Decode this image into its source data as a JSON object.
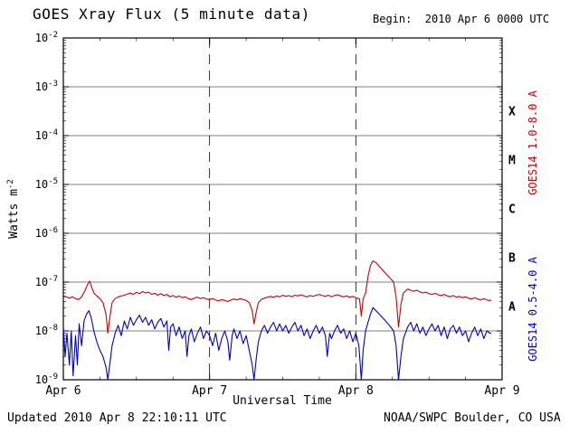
{
  "title": "GOES Xray Flux (5 minute data)",
  "begin_label": "Begin:  2010 Apr 6 0000 UTC",
  "footer": {
    "updated": "Updated 2010 Apr 8 22:10:11 UTC",
    "source": "NOAA/SWPC Boulder, CO USA"
  },
  "axes": {
    "xlabel": "Universal Time",
    "ylabel_base": "Watts m",
    "ylabel_exp": "-2",
    "y_tick_exponents": [
      -2,
      -3,
      -4,
      -5,
      -6,
      -7,
      -8,
      -9
    ],
    "flare_classes": [
      {
        "label": "X",
        "exp": -3.5
      },
      {
        "label": "M",
        "exp": -4.5
      },
      {
        "label": "C",
        "exp": -5.5
      },
      {
        "label": "B",
        "exp": -6.5
      },
      {
        "label": "A",
        "exp": -7.5
      }
    ]
  },
  "colors": {
    "long": "#cc0000",
    "short": "#0000cc",
    "grid": "#000000"
  },
  "chart_data": {
    "type": "line",
    "title": "GOES Xray Flux (5 minute data)",
    "xlabel": "Universal Time",
    "ylabel": "Watts m^-2",
    "x_unit": "hours since 2010 Apr 6 0000 UTC",
    "x_range": [
      0,
      72
    ],
    "y_log_range": [
      1e-09,
      0.01
    ],
    "grid": "solid horizontal per decade, dashed vertical per day",
    "legend_position": "right, rotated",
    "x_ticks": [
      {
        "hour": 0,
        "label": "Apr 6"
      },
      {
        "hour": 24,
        "label": "Apr 7"
      },
      {
        "hour": 48,
        "label": "Apr 8"
      },
      {
        "hour": 72,
        "label": "Apr 9"
      }
    ],
    "series": [
      {
        "id": "goes14-long",
        "name": "GOES14 1.0-8.0 A",
        "color": "#cc0000",
        "points": [
          [
            0,
            5.2e-08
          ],
          [
            0.5,
            5e-08
          ],
          [
            1,
            4.7e-08
          ],
          [
            1.5,
            5e-08
          ],
          [
            2,
            4.6e-08
          ],
          [
            2.5,
            4.4e-08
          ],
          [
            3,
            5e-08
          ],
          [
            3.5,
            6.5e-08
          ],
          [
            4,
            9e-08
          ],
          [
            4.3,
            1.05e-07
          ],
          [
            4.7,
            7.5e-08
          ],
          [
            5,
            6e-08
          ],
          [
            5.5,
            5.2e-08
          ],
          [
            6,
            4.6e-08
          ],
          [
            6.5,
            3.8e-08
          ],
          [
            7,
            2.2e-08
          ],
          [
            7.3,
            9e-09
          ],
          [
            7.7,
            2.2e-08
          ],
          [
            8,
            3.8e-08
          ],
          [
            8.5,
            4.6e-08
          ],
          [
            9,
            5e-08
          ],
          [
            10,
            5.4e-08
          ],
          [
            11,
            6e-08
          ],
          [
            11.5,
            5.6e-08
          ],
          [
            12,
            6.2e-08
          ],
          [
            12.5,
            5.8e-08
          ],
          [
            13,
            6.4e-08
          ],
          [
            13.5,
            6e-08
          ],
          [
            14,
            6.2e-08
          ],
          [
            14.5,
            5.6e-08
          ],
          [
            15,
            5.9e-08
          ],
          [
            15.5,
            5.4e-08
          ],
          [
            16,
            5.8e-08
          ],
          [
            16.5,
            5.3e-08
          ],
          [
            17,
            5.6e-08
          ],
          [
            17.5,
            5e-08
          ],
          [
            18,
            5.3e-08
          ],
          [
            18.5,
            4.9e-08
          ],
          [
            19,
            5.2e-08
          ],
          [
            19.5,
            4.8e-08
          ],
          [
            20,
            5e-08
          ],
          [
            20.5,
            4.6e-08
          ],
          [
            21,
            4.4e-08
          ],
          [
            21.5,
            4.7e-08
          ],
          [
            22,
            4.9e-08
          ],
          [
            22.5,
            4.6e-08
          ],
          [
            23,
            4.8e-08
          ],
          [
            23.5,
            4.5e-08
          ],
          [
            24,
            4.4e-08
          ],
          [
            24.5,
            4.6e-08
          ],
          [
            25,
            4.3e-08
          ],
          [
            25.5,
            4.1e-08
          ],
          [
            26,
            4.4e-08
          ],
          [
            26.5,
            4.2e-08
          ],
          [
            27,
            4e-08
          ],
          [
            27.5,
            4.3e-08
          ],
          [
            28,
            4.5e-08
          ],
          [
            28.5,
            4.3e-08
          ],
          [
            29,
            4.6e-08
          ],
          [
            29.5,
            4.4e-08
          ],
          [
            30,
            4.2e-08
          ],
          [
            30.5,
            3.8e-08
          ],
          [
            31,
            2.6e-08
          ],
          [
            31.3,
            1.4e-08
          ],
          [
            31.7,
            2.6e-08
          ],
          [
            32,
            3.8e-08
          ],
          [
            32.5,
            4.4e-08
          ],
          [
            33,
            4.7e-08
          ],
          [
            33.5,
            4.9e-08
          ],
          [
            34,
            5.1e-08
          ],
          [
            34.5,
            4.9e-08
          ],
          [
            35,
            5.2e-08
          ],
          [
            35.5,
            5e-08
          ],
          [
            36,
            5.4e-08
          ],
          [
            36.5,
            5.1e-08
          ],
          [
            37,
            5.3e-08
          ],
          [
            37.5,
            5e-08
          ],
          [
            38,
            5.4e-08
          ],
          [
            38.5,
            5.2e-08
          ],
          [
            39,
            5.5e-08
          ],
          [
            39.5,
            5.2e-08
          ],
          [
            40,
            5e-08
          ],
          [
            40.5,
            5.3e-08
          ],
          [
            41,
            5.1e-08
          ],
          [
            41.5,
            5.4e-08
          ],
          [
            42,
            5.6e-08
          ],
          [
            42.5,
            5.3e-08
          ],
          [
            43,
            5.1e-08
          ],
          [
            43.5,
            5.4e-08
          ],
          [
            44,
            5e-08
          ],
          [
            44.5,
            5.3e-08
          ],
          [
            45,
            5.5e-08
          ],
          [
            45.5,
            5.2e-08
          ],
          [
            46,
            5e-08
          ],
          [
            46.5,
            5.2e-08
          ],
          [
            47,
            4.9e-08
          ],
          [
            47.5,
            5.1e-08
          ],
          [
            48,
            4.8e-08
          ],
          [
            48.6,
            4.5e-08
          ],
          [
            48.9,
            2e-08
          ],
          [
            49.2,
            4.5e-08
          ],
          [
            49.6,
            6e-08
          ],
          [
            50,
            1.3e-07
          ],
          [
            50.4,
            2.2e-07
          ],
          [
            50.8,
            2.7e-07
          ],
          [
            51.3,
            2.5e-07
          ],
          [
            52,
            2e-07
          ],
          [
            52.7,
            1.6e-07
          ],
          [
            53.5,
            1.25e-07
          ],
          [
            54.2,
            1e-07
          ],
          [
            54.6,
            5e-08
          ],
          [
            55,
            1.2e-08
          ],
          [
            55.4,
            3.5e-08
          ],
          [
            55.8,
            6e-08
          ],
          [
            56.5,
            7.2e-08
          ],
          [
            57,
            6.8e-08
          ],
          [
            57.5,
            6.5e-08
          ],
          [
            58,
            6.8e-08
          ],
          [
            58.5,
            6.3e-08
          ],
          [
            59,
            6e-08
          ],
          [
            59.5,
            6.2e-08
          ],
          [
            60,
            5.8e-08
          ],
          [
            60.5,
            5.6e-08
          ],
          [
            61,
            5.9e-08
          ],
          [
            61.5,
            5.5e-08
          ],
          [
            62,
            5.3e-08
          ],
          [
            62.5,
            5.6e-08
          ],
          [
            63,
            5.2e-08
          ],
          [
            63.5,
            5e-08
          ],
          [
            64,
            5.3e-08
          ],
          [
            64.5,
            4.9e-08
          ],
          [
            65,
            5.1e-08
          ],
          [
            65.5,
            4.8e-08
          ],
          [
            66,
            5e-08
          ],
          [
            66.5,
            4.7e-08
          ],
          [
            67,
            4.5e-08
          ],
          [
            67.5,
            4.8e-08
          ],
          [
            68,
            4.5e-08
          ],
          [
            68.5,
            4.3e-08
          ],
          [
            69,
            4.6e-08
          ],
          [
            69.5,
            4.3e-08
          ],
          [
            70,
            4.2e-08
          ],
          [
            70.2,
            4.3e-08
          ]
        ]
      },
      {
        "id": "goes14-short",
        "name": "GOES14 0.5-4.0 A",
        "color": "#0000cc",
        "points": [
          [
            0,
            1.2e-08
          ],
          [
            0.3,
            3e-09
          ],
          [
            0.6,
            9e-09
          ],
          [
            1,
            2e-09
          ],
          [
            1.3,
            1e-08
          ],
          [
            1.6,
            1.2e-09
          ],
          [
            2,
            8e-09
          ],
          [
            2.3,
            2e-09
          ],
          [
            2.6,
            1.4e-08
          ],
          [
            3,
            5e-09
          ],
          [
            3.4,
            1.6e-08
          ],
          [
            3.8,
            2.2e-08
          ],
          [
            4.2,
            2.6e-08
          ],
          [
            4.6,
            1.8e-08
          ],
          [
            5,
            1e-08
          ],
          [
            5.5,
            6e-09
          ],
          [
            6,
            4e-09
          ],
          [
            6.5,
            3e-09
          ],
          [
            7,
            1.8e-09
          ],
          [
            7.3,
            1e-09
          ],
          [
            7.7,
            2.5e-09
          ],
          [
            8,
            5e-09
          ],
          [
            8.5,
            9e-09
          ],
          [
            9,
            1.3e-08
          ],
          [
            9.5,
            8e-09
          ],
          [
            10,
            1.6e-08
          ],
          [
            10.5,
            1.1e-08
          ],
          [
            11,
            1.9e-08
          ],
          [
            11.5,
            1.3e-08
          ],
          [
            12,
            1.7e-08
          ],
          [
            12.5,
            2.1e-08
          ],
          [
            13,
            1.5e-08
          ],
          [
            13.5,
            1.9e-08
          ],
          [
            14,
            1.3e-08
          ],
          [
            14.5,
            1.7e-08
          ],
          [
            15,
            1.1e-08
          ],
          [
            15.5,
            1.5e-08
          ],
          [
            16,
            1.8e-08
          ],
          [
            16.5,
            1.2e-08
          ],
          [
            17,
            1.6e-08
          ],
          [
            17.3,
            4e-09
          ],
          [
            17.6,
            1.2e-08
          ],
          [
            18,
            1.4e-08
          ],
          [
            18.5,
            8e-09
          ],
          [
            19,
            1.2e-08
          ],
          [
            19.5,
            7e-09
          ],
          [
            20,
            1e-08
          ],
          [
            20.3,
            3e-09
          ],
          [
            20.6,
            8e-09
          ],
          [
            21,
            1.1e-08
          ],
          [
            21.5,
            6e-09
          ],
          [
            22,
            9e-09
          ],
          [
            22.5,
            1.2e-08
          ],
          [
            23,
            7e-09
          ],
          [
            23.5,
            1e-08
          ],
          [
            24,
            8e-09
          ],
          [
            24.5,
            5e-09
          ],
          [
            25,
            9e-09
          ],
          [
            25.5,
            4e-09
          ],
          [
            26,
            7e-09
          ],
          [
            26.5,
            1e-08
          ],
          [
            27,
            6e-09
          ],
          [
            27.3,
            2.5e-09
          ],
          [
            27.7,
            8e-09
          ],
          [
            28,
            1.1e-08
          ],
          [
            28.5,
            7e-09
          ],
          [
            29,
            1e-08
          ],
          [
            29.5,
            5.5e-09
          ],
          [
            30,
            8e-09
          ],
          [
            30.5,
            4e-09
          ],
          [
            31,
            2e-09
          ],
          [
            31.3,
            1e-09
          ],
          [
            31.7,
            3e-09
          ],
          [
            32,
            6e-09
          ],
          [
            32.5,
            1e-08
          ],
          [
            33,
            1.3e-08
          ],
          [
            33.5,
            9e-09
          ],
          [
            34,
            1.2e-08
          ],
          [
            34.5,
            1.5e-08
          ],
          [
            35,
            1e-08
          ],
          [
            35.5,
            1.4e-08
          ],
          [
            36,
            1e-08
          ],
          [
            36.5,
            1.3e-08
          ],
          [
            37,
            9e-09
          ],
          [
            37.5,
            1.2e-08
          ],
          [
            38,
            1.5e-08
          ],
          [
            38.5,
            1e-08
          ],
          [
            39,
            1.3e-08
          ],
          [
            39.5,
            8e-09
          ],
          [
            40,
            1.1e-08
          ],
          [
            40.5,
            7e-09
          ],
          [
            41,
            1e-08
          ],
          [
            41.5,
            1.3e-08
          ],
          [
            42,
            9e-09
          ],
          [
            42.5,
            1.2e-08
          ],
          [
            43,
            8e-09
          ],
          [
            43.3,
            3e-09
          ],
          [
            43.7,
            9e-09
          ],
          [
            44,
            7e-09
          ],
          [
            44.5,
            1e-08
          ],
          [
            45,
            1.3e-08
          ],
          [
            45.5,
            9e-09
          ],
          [
            46,
            1.1e-08
          ],
          [
            46.5,
            7e-09
          ],
          [
            47,
            1e-08
          ],
          [
            47.5,
            6e-09
          ],
          [
            48,
            9e-09
          ],
          [
            48.5,
            5e-09
          ],
          [
            48.9,
            1e-09
          ],
          [
            49.2,
            4e-09
          ],
          [
            49.6,
            1e-08
          ],
          [
            50,
            1.5e-08
          ],
          [
            50.4,
            2.2e-08
          ],
          [
            50.8,
            3e-08
          ],
          [
            51.3,
            2.6e-08
          ],
          [
            52,
            2.1e-08
          ],
          [
            52.7,
            1.7e-08
          ],
          [
            53.5,
            1.3e-08
          ],
          [
            54.2,
            1e-08
          ],
          [
            54.6,
            5e-09
          ],
          [
            55,
            1e-09
          ],
          [
            55.4,
            3e-09
          ],
          [
            55.8,
            7e-09
          ],
          [
            56.5,
            1.2e-08
          ],
          [
            57,
            1.5e-08
          ],
          [
            57.5,
            1e-08
          ],
          [
            58,
            1.4e-08
          ],
          [
            58.5,
            9e-09
          ],
          [
            59,
            1.2e-08
          ],
          [
            59.5,
            8e-09
          ],
          [
            60,
            1.1e-08
          ],
          [
            60.5,
            1.4e-08
          ],
          [
            61,
            1e-08
          ],
          [
            61.5,
            1.3e-08
          ],
          [
            62,
            8e-09
          ],
          [
            62.5,
            1.2e-08
          ],
          [
            63,
            7e-09
          ],
          [
            63.5,
            1.1e-08
          ],
          [
            64,
            1.3e-08
          ],
          [
            64.5,
            9e-09
          ],
          [
            65,
            1.2e-08
          ],
          [
            65.5,
            8e-09
          ],
          [
            66,
            1e-08
          ],
          [
            66.5,
            6e-09
          ],
          [
            67,
            9e-09
          ],
          [
            67.5,
            1.2e-08
          ],
          [
            68,
            8e-09
          ],
          [
            68.5,
            1.1e-08
          ],
          [
            69,
            7e-09
          ],
          [
            69.5,
            1e-08
          ],
          [
            70,
            9e-09
          ],
          [
            70.2,
            9e-09
          ]
        ]
      }
    ]
  }
}
